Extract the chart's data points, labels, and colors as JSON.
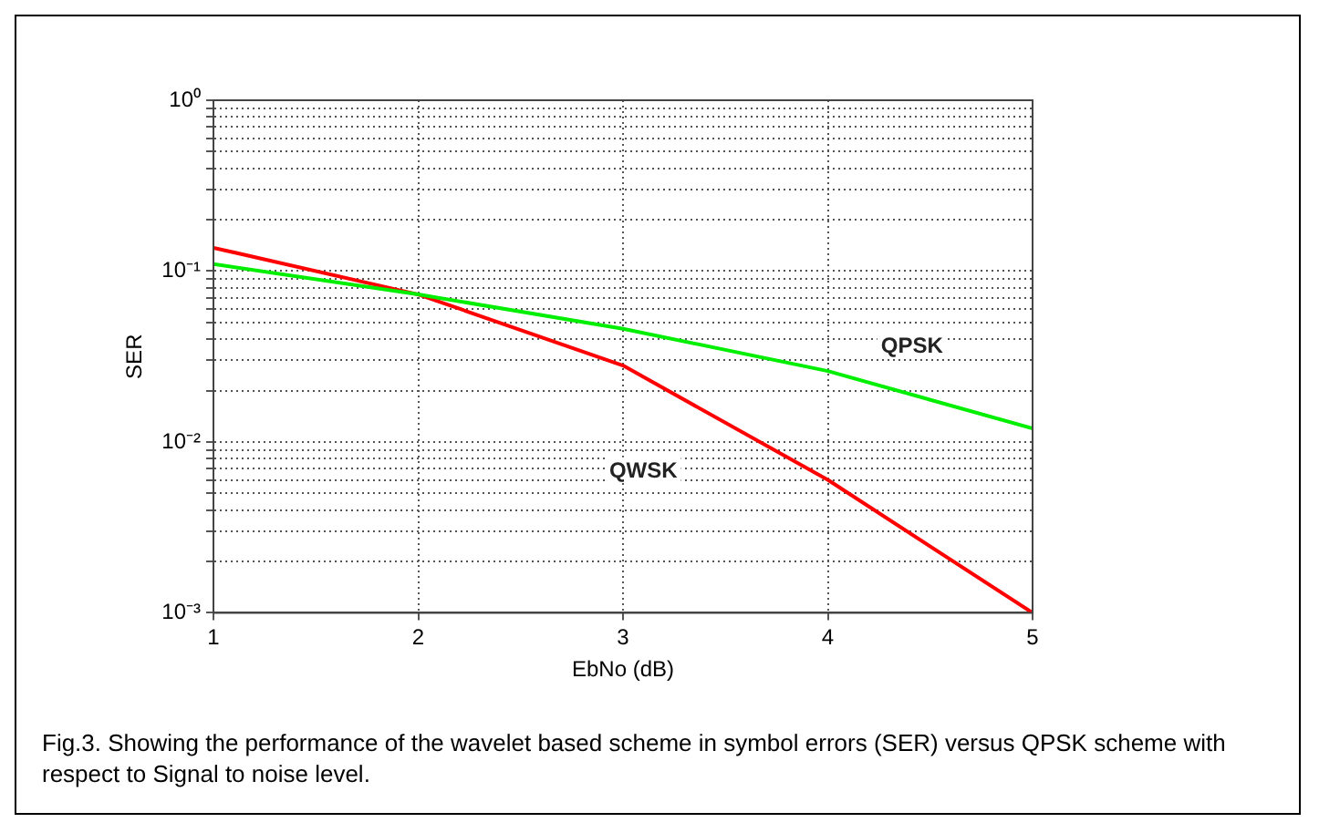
{
  "chart_data": {
    "type": "line",
    "xlabel": "EbNo (dB)",
    "ylabel": "SER",
    "x": [
      1,
      2,
      3,
      4,
      5
    ],
    "series": [
      {
        "name": "QPSK",
        "color": "#00ee00",
        "values": [
          0.11,
          0.073,
          0.046,
          0.026,
          0.012
        ]
      },
      {
        "name": "QWSK",
        "color": "#ff0000",
        "values": [
          0.137,
          0.073,
          0.028,
          0.006,
          0.001
        ]
      }
    ],
    "log": "y",
    "xlim": [
      1,
      5
    ],
    "xticks": [
      1,
      2,
      3,
      4,
      5
    ],
    "ylim": [
      0.001,
      1
    ],
    "yticks": [
      {
        "value": 0.001,
        "label": "10⁻³"
      },
      {
        "value": 0.002,
        "label": null
      },
      {
        "value": 0.003,
        "label": null
      },
      {
        "value": 0.004,
        "label": null
      },
      {
        "value": 0.005,
        "label": null
      },
      {
        "value": 0.006,
        "label": null
      },
      {
        "value": 0.007,
        "label": null
      },
      {
        "value": 0.008,
        "label": null
      },
      {
        "value": 0.009,
        "label": null
      },
      {
        "value": 0.01,
        "label": "10⁻²"
      },
      {
        "value": 0.02,
        "label": null
      },
      {
        "value": 0.03,
        "label": null
      },
      {
        "value": 0.04,
        "label": null
      },
      {
        "value": 0.05,
        "label": null
      },
      {
        "value": 0.06,
        "label": null
      },
      {
        "value": 0.07,
        "label": null
      },
      {
        "value": 0.08,
        "label": null
      },
      {
        "value": 0.09,
        "label": null
      },
      {
        "value": 0.1,
        "label": "10⁻¹"
      },
      {
        "value": 0.2,
        "label": null
      },
      {
        "value": 0.3,
        "label": null
      },
      {
        "value": 0.4,
        "label": null
      },
      {
        "value": 0.5,
        "label": null
      },
      {
        "value": 0.6,
        "label": null
      },
      {
        "value": 0.7,
        "label": null
      },
      {
        "value": 0.8,
        "label": null
      },
      {
        "value": 0.9,
        "label": null
      },
      {
        "value": 1,
        "label": "10⁰"
      }
    ],
    "grid": true,
    "legend": false,
    "marker": "none",
    "line_style": "solid",
    "annotations": [
      "Fig.3. Showing the performance  of the wavelet based scheme in symbol errors (SER) versus QPSK scheme with respect to  Signal to noise level."
    ]
  }
}
